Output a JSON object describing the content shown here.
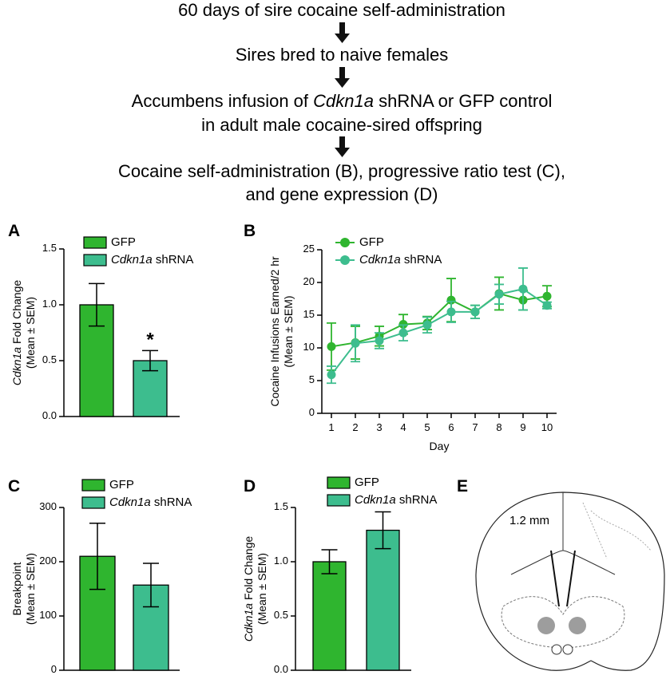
{
  "flow": {
    "steps": [
      {
        "lines": [
          [
            "60 days of sire cocaine self-administration"
          ]
        ]
      },
      {
        "lines": [
          [
            "Sires bred to naive females"
          ]
        ]
      },
      {
        "lines": [
          [
            "Accumbens infusion of ",
            "Cdkn1a",
            " shRNA or GFP control"
          ],
          [
            "in adult male cocaine-sired offspring"
          ]
        ]
      },
      {
        "lines": [
          [
            "Cocaine self-administration (B), progressive ratio test (C),"
          ],
          [
            "and gene expression (D)"
          ]
        ]
      }
    ]
  },
  "chart_data": [
    {
      "type": "bar",
      "panel": "A",
      "ylabel": [
        "Cdkn1a Fold Change",
        "(Mean ± SEM)"
      ],
      "series": [
        {
          "name": "GFP",
          "color": "#2fb52f",
          "values": [
            1.0
          ],
          "errors": [
            0.19
          ]
        },
        {
          "name": "Cdkn1a shRNA",
          "color": "#3dbd8e",
          "values": [
            0.5
          ],
          "errors": [
            0.09
          ]
        }
      ],
      "annotation": "*",
      "ylim": [
        0,
        1.5
      ],
      "yticks": [
        {
          "value": 0,
          "label": "0.0"
        },
        {
          "value": 0.5,
          "label": "0.5"
        },
        {
          "value": 1,
          "label": "1.0"
        },
        {
          "value": 1.5,
          "label": "1.5"
        }
      ]
    },
    {
      "type": "line",
      "panel": "B",
      "xlabel": "Day",
      "ylabel": [
        "Cocaine Infusions Earned/2 hr",
        "(Mean ± SEM)"
      ],
      "x": [
        1,
        2,
        3,
        4,
        5,
        6,
        7,
        8,
        9,
        10
      ],
      "series": [
        {
          "name": "GFP",
          "color": "#2fb52f",
          "values": [
            10.2,
            10.8,
            11.8,
            13.6,
            13.8,
            17.3,
            15.5,
            18.3,
            17.3,
            17.9
          ],
          "errors": [
            3.6,
            2.5,
            1.5,
            1.5,
            1.0,
            3.3,
            1.0,
            2.5,
            1.5,
            1.6
          ]
        },
        {
          "name": "Cdkn1a shRNA",
          "color": "#3dbd8e",
          "values": [
            5.9,
            10.7,
            11.1,
            12.3,
            13.5,
            15.5,
            15.5,
            18.2,
            19.0,
            16.5
          ],
          "errors": [
            1.3,
            2.8,
            1.2,
            1.2,
            1.2,
            1.6,
            1.0,
            1.5,
            3.2,
            0.5
          ]
        }
      ],
      "xlim": [
        0.6,
        10.4
      ],
      "xticks": [
        1,
        2,
        3,
        4,
        5,
        6,
        7,
        8,
        9,
        10
      ],
      "ylim": [
        0,
        25
      ],
      "yticks": [
        0,
        5,
        10,
        15,
        20,
        25
      ]
    },
    {
      "type": "bar",
      "panel": "C",
      "ylabel": [
        "Breakpoint",
        "(Mean ± SEM)"
      ],
      "series": [
        {
          "name": "GFP",
          "color": "#2fb52f",
          "values": [
            210
          ],
          "errors": [
            61
          ]
        },
        {
          "name": "Cdkn1a shRNA",
          "color": "#3dbd8e",
          "values": [
            157
          ],
          "errors": [
            40
          ]
        }
      ],
      "ylim": [
        0,
        300
      ],
      "yticks": [
        0,
        100,
        200,
        300
      ]
    },
    {
      "type": "bar",
      "panel": "D",
      "ylabel": [
        "Cdkn1a Fold Change",
        "(Mean ± SEM)"
      ],
      "series": [
        {
          "name": "GFP",
          "color": "#2fb52f",
          "values": [
            1.0
          ],
          "errors": [
            0.11
          ]
        },
        {
          "name": "Cdkn1a shRNA",
          "color": "#3dbd8e",
          "values": [
            1.29
          ],
          "errors": [
            0.17
          ]
        }
      ],
      "ylim": [
        0,
        1.5
      ],
      "yticks": [
        {
          "value": 0,
          "label": "0.0"
        },
        {
          "value": 0.5,
          "label": "0.5"
        },
        {
          "value": 1,
          "label": "1.0"
        },
        {
          "value": 1.5,
          "label": "1.5"
        }
      ]
    }
  ],
  "panel_e": {
    "panel": "E",
    "label": "1.2 mm"
  }
}
